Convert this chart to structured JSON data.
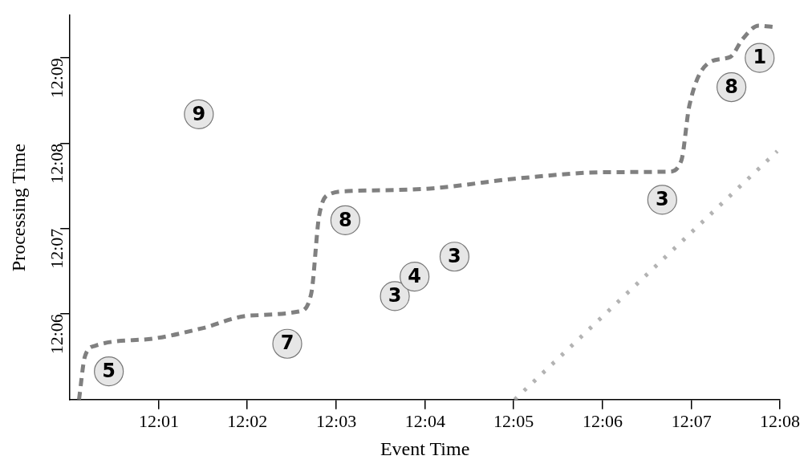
{
  "chart_data": {
    "type": "scatter",
    "xlabel": "Event Time",
    "ylabel": "Processing Time",
    "xlim": [
      12.0,
      12.1333
    ],
    "xticks": [
      {
        "value": 12.0167,
        "label": "12:01"
      },
      {
        "value": 12.0333,
        "label": "12:02"
      },
      {
        "value": 12.05,
        "label": "12:03"
      },
      {
        "value": 12.0667,
        "label": "12:04"
      },
      {
        "value": 12.0833,
        "label": "12:05"
      },
      {
        "value": 12.1,
        "label": "12:06"
      },
      {
        "value": 12.1167,
        "label": "12:07"
      },
      {
        "value": 12.1333,
        "label": "12:08"
      }
    ],
    "ylim": [
      12.0833,
      12.1583
    ],
    "yticks": [
      {
        "value": 12.1,
        "label": "12:06"
      },
      {
        "value": 12.1167,
        "label": "12:07"
      },
      {
        "value": 12.1333,
        "label": "12:08"
      },
      {
        "value": 12.15,
        "label": "12:09"
      }
    ],
    "grid": false,
    "legend": false,
    "annotations": [
      {
        "text": "5",
        "x": 12.0073,
        "y": 12.0888
      },
      {
        "text": "9",
        "x": 12.0242,
        "y": 12.139
      },
      {
        "text": "7",
        "x": 12.0408,
        "y": 12.0942
      },
      {
        "text": "8",
        "x": 12.0517,
        "y": 12.1183
      },
      {
        "text": "3",
        "x": 12.061,
        "y": 12.1035
      },
      {
        "text": "4",
        "x": 12.0647,
        "y": 12.1073
      },
      {
        "text": "3",
        "x": 12.0722,
        "y": 12.1112
      },
      {
        "text": "3",
        "x": 12.1112,
        "y": 12.1223
      },
      {
        "text": "8",
        "x": 12.1242,
        "y": 12.1443
      },
      {
        "text": "1",
        "x": 12.1295,
        "y": 12.15
      }
    ],
    "series": [
      {
        "color": "#e6e6e6",
        "marker": "circle",
        "x": [
          12.0073,
          12.0242,
          12.0408,
          12.0517,
          12.061,
          12.0647,
          12.0722,
          12.1112,
          12.1242,
          12.1295
        ],
        "values": [
          12.0888,
          12.139,
          12.0942,
          12.1183,
          12.1035,
          12.1073,
          12.1112,
          12.1223,
          12.1443,
          12.15
        ]
      },
      {
        "type": "line",
        "color": "#808080",
        "line_style": "dashed",
        "marker": "none",
        "x": [
          12.0017,
          12.0028,
          12.0047,
          12.0155,
          12.0247,
          12.0338,
          12.043,
          12.0453,
          12.0468,
          12.049,
          12.0522,
          12.0675,
          12.0843,
          12.101,
          12.1125,
          12.1148,
          12.1163,
          12.1202,
          12.124,
          12.1263,
          12.1293,
          12.1323
        ],
        "values": [
          12.0833,
          12.0917,
          12.0938,
          12.0952,
          12.0972,
          12.0997,
          12.1005,
          12.104,
          12.1193,
          12.1235,
          12.124,
          12.1245,
          12.1265,
          12.1277,
          12.1278,
          12.13,
          12.1407,
          12.1492,
          12.1502,
          12.1537,
          12.1563,
          12.156
        ]
      },
      {
        "type": "line",
        "color": "#b3b3b3",
        "line_style": "dotted",
        "marker": "none",
        "x": [
          12.0835,
          12.1328
        ],
        "values": [
          12.0833,
          12.1318
        ]
      }
    ]
  }
}
